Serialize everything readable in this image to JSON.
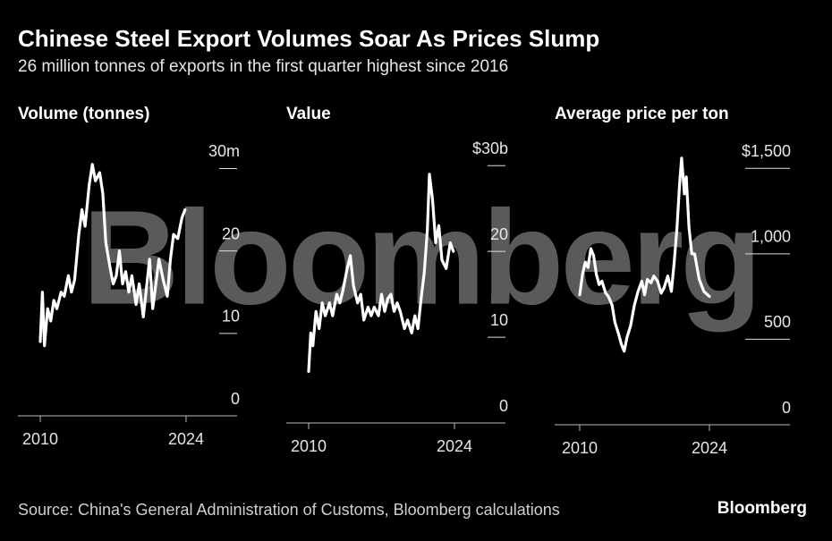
{
  "title": "Chinese Steel Export Volumes Soar As Prices Slump",
  "subtitle": "26 million tonnes of exports in the first quarter highest since 2016",
  "watermark": "Bloomberg",
  "source": "Source: China's General Administration of Customs, Bloomberg calculations",
  "logo": "Bloomberg",
  "chart_data": [
    {
      "type": "line",
      "title": "Volume (tonnes)",
      "color": "#ffffff",
      "x": [
        2010.0,
        2010.2,
        2010.4,
        2010.7,
        2011.0,
        2011.3,
        2011.6,
        2012.0,
        2012.3,
        2012.7,
        2013.0,
        2013.3,
        2013.7,
        2014.0,
        2014.3,
        2014.7,
        2015.0,
        2015.3,
        2015.7,
        2016.0,
        2016.3,
        2016.7,
        2017.0,
        2017.3,
        2017.6,
        2017.9,
        2018.2,
        2018.5,
        2018.8,
        2019.2,
        2019.5,
        2019.9,
        2020.2,
        2020.5,
        2020.8,
        2021.1,
        2021.4,
        2021.8,
        2022.2,
        2022.5,
        2022.8,
        2023.2,
        2023.6,
        2023.9
      ],
      "values": [
        9,
        15,
        8.5,
        13,
        11.5,
        14,
        13,
        15,
        14.5,
        17,
        15,
        16.5,
        22,
        25,
        23,
        28,
        30.5,
        28.5,
        29.5,
        27,
        21,
        18,
        16,
        17,
        20,
        16,
        17.5,
        15,
        17,
        13.5,
        16,
        12,
        15.5,
        19,
        13,
        16,
        19,
        16.5,
        14.5,
        19,
        22,
        21.5,
        24,
        25
      ],
      "xlim": [
        2007.85,
        2028.9
      ],
      "xticks": [
        2010,
        2024
      ],
      "ylim": [
        0,
        32
      ],
      "yticks": [
        {
          "value": 30,
          "label": "30m"
        },
        20,
        10,
        0
      ]
    },
    {
      "type": "line",
      "title": "Value",
      "color": "#ffffff",
      "x": [
        2010.0,
        2010.2,
        2010.4,
        2010.7,
        2011.0,
        2011.3,
        2011.6,
        2012.0,
        2012.3,
        2012.7,
        2013.0,
        2013.3,
        2013.7,
        2014.0,
        2014.3,
        2014.7,
        2015.0,
        2015.3,
        2015.7,
        2016.0,
        2016.3,
        2016.7,
        2017.0,
        2017.3,
        2017.6,
        2017.9,
        2018.2,
        2018.5,
        2018.8,
        2019.2,
        2019.5,
        2019.9,
        2020.2,
        2020.5,
        2020.8,
        2021.1,
        2021.4,
        2021.6,
        2021.9,
        2022.2,
        2022.5,
        2022.8,
        2023.2,
        2023.6,
        2023.9
      ],
      "values": [
        6,
        10.5,
        9,
        13,
        11,
        14,
        12.5,
        14,
        12.5,
        15,
        14,
        15.5,
        18,
        19.5,
        16,
        14,
        15,
        12,
        13.5,
        12.5,
        13.5,
        12.5,
        15,
        13,
        14.5,
        15,
        13,
        14,
        13,
        11,
        12,
        10.5,
        12.5,
        11,
        14.5,
        17.5,
        22.5,
        29,
        26,
        21,
        23,
        19,
        18,
        21,
        20
      ],
      "xlim": [
        2007.85,
        2028.9
      ],
      "xticks": [
        2010,
        2024
      ],
      "ylim": [
        0,
        32
      ],
      "yticks": [
        {
          "value": 30,
          "label": "$30b"
        },
        20,
        10,
        0
      ]
    },
    {
      "type": "line",
      "title": "Average price per ton",
      "color": "#ffffff",
      "x": [
        2010.0,
        2010.3,
        2010.6,
        2010.9,
        2011.2,
        2011.5,
        2011.8,
        2012.1,
        2012.4,
        2012.8,
        2013.1,
        2013.5,
        2013.8,
        2014.2,
        2014.5,
        2014.8,
        2015.1,
        2015.5,
        2015.9,
        2016.3,
        2016.7,
        2017.0,
        2017.3,
        2017.7,
        2018.0,
        2018.4,
        2018.8,
        2019.1,
        2019.5,
        2019.9,
        2020.2,
        2020.5,
        2020.8,
        2021.0,
        2021.3,
        2021.5,
        2021.8,
        2022.1,
        2022.4,
        2022.9,
        2023.4,
        2024.0
      ],
      "values": [
        760,
        880,
        950,
        920,
        1030,
        990,
        880,
        820,
        840,
        770,
        750,
        700,
        600,
        530,
        470,
        430,
        510,
        580,
        700,
        780,
        840,
        760,
        850,
        830,
        870,
        840,
        770,
        800,
        870,
        780,
        950,
        1150,
        1420,
        1560,
        1350,
        1450,
        1150,
        1000,
        1000,
        850,
        780,
        750
      ],
      "xlim": [
        2007.3,
        2032.69
      ],
      "xticks": [
        2010,
        2024
      ],
      "ylim": [
        0,
        1700
      ],
      "yticks": [
        {
          "value": 1500,
          "label": "$1,500"
        },
        {
          "value": 1000,
          "label": "1,000"
        },
        500,
        0
      ]
    }
  ]
}
